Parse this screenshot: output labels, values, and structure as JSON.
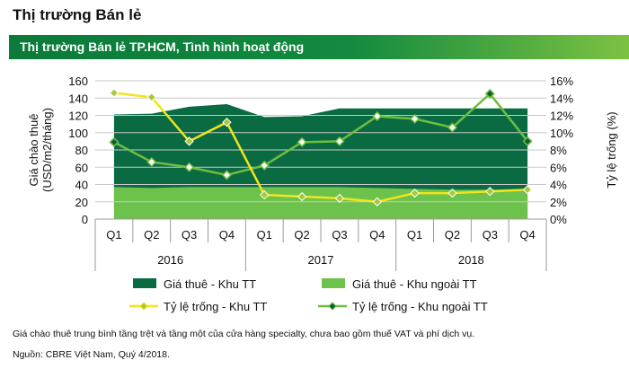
{
  "page_title": "Thị trường Bán lẻ",
  "banner_title": "Thị trường Bán lẻ TP.HCM, Tình hình hoạt động",
  "footnote": "Giá chào thuê trung bình tầng trệt và tầng một của cửa hàng specialty, chưa bao gồm thuế VAT và phí dịch vụ.",
  "source": "Nguồn: CBRE Việt Nam, Quý 4/2018.",
  "colors": {
    "rent_cbd": "#0a6b43",
    "rent_noncbd": "#6cc24a",
    "vac_cbd": "#f2e41d",
    "vac_noncbd": "#6fbe3f",
    "marker_fill": "#ffffff"
  },
  "chart_data": {
    "type": "area",
    "categories": [
      "Q1",
      "Q2",
      "Q3",
      "Q4",
      "Q1",
      "Q2",
      "Q3",
      "Q4",
      "Q1",
      "Q2",
      "Q3",
      "Q4"
    ],
    "years": [
      "2016",
      "2017",
      "2018"
    ],
    "ylabel": "Giá chào thuê (USD/m2/tháng)",
    "y2label": "Tỷ lệ trống (%)",
    "ylim": [
      0,
      160
    ],
    "yticks": [
      "0",
      "20",
      "40",
      "60",
      "80",
      "100",
      "120",
      "140",
      "160"
    ],
    "y2lim": [
      0,
      16
    ],
    "y2ticks": [
      "0%",
      "2%",
      "4%",
      "6%",
      "8%",
      "10%",
      "12%",
      "14%",
      "16%"
    ],
    "legend_position": "bottom",
    "series": [
      {
        "name": "Giá thuê - Khu TT",
        "type": "area",
        "axis": "left",
        "values": [
          121,
          122,
          130,
          133,
          118,
          119,
          128,
          128,
          128,
          128,
          128,
          128
        ]
      },
      {
        "name": "Giá thuê - Khu ngoài TT",
        "type": "area",
        "axis": "left",
        "values": [
          37,
          36,
          37,
          37,
          37,
          37,
          37,
          36,
          35,
          34,
          34,
          35
        ]
      },
      {
        "name": "Tỷ lệ trống - Khu TT",
        "type": "line",
        "axis": "right",
        "values": [
          14.6,
          14.1,
          9.0,
          11.2,
          2.8,
          2.6,
          2.4,
          2.0,
          3.0,
          3.0,
          3.2,
          3.4
        ]
      },
      {
        "name": "Tỷ lệ trống - Khu ngoài TT",
        "type": "line",
        "axis": "right",
        "values": [
          8.9,
          6.6,
          6.0,
          5.1,
          6.2,
          8.9,
          9.0,
          11.9,
          11.6,
          10.6,
          14.5,
          9.0
        ]
      }
    ]
  }
}
